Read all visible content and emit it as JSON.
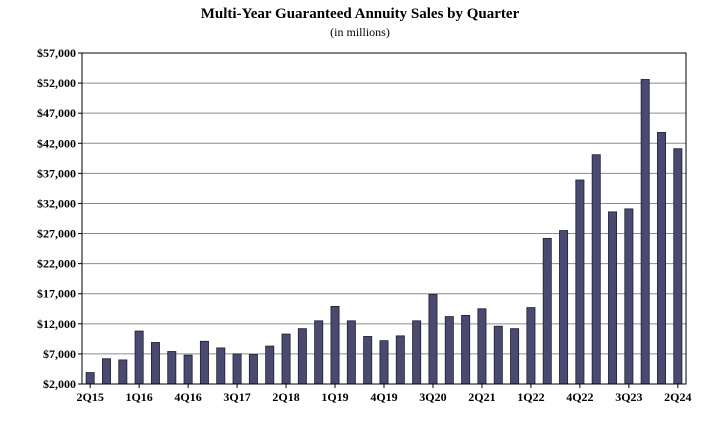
{
  "chart_data": {
    "type": "bar",
    "title": "Multi-Year Guaranteed Annuity Sales by Quarter",
    "subtitle": "(in millions)",
    "xlabel": "",
    "ylabel": "",
    "ylim": [
      2000,
      57000
    ],
    "yticks": [
      "$2,000",
      "$7,000",
      "$12,000",
      "$17,000",
      "$22,000",
      "$27,000",
      "$32,000",
      "$37,000",
      "$42,000",
      "$47,000",
      "$52,000",
      "$57,000"
    ],
    "grid": true,
    "bar_color": "#4a4a70",
    "categories": [
      "2Q15",
      "3Q15",
      "4Q15",
      "1Q16",
      "2Q16",
      "3Q16",
      "4Q16",
      "1Q17",
      "2Q17",
      "3Q17",
      "4Q17",
      "1Q18",
      "2Q18",
      "3Q18",
      "4Q18",
      "1Q19",
      "2Q19",
      "3Q19",
      "4Q19",
      "1Q20",
      "2Q20",
      "3Q20",
      "4Q20",
      "1Q21",
      "2Q21",
      "3Q21",
      "4Q21",
      "1Q22",
      "2Q22",
      "3Q22",
      "4Q22",
      "1Q23",
      "2Q23",
      "3Q23",
      "4Q23",
      "1Q24",
      "2Q24"
    ],
    "xtick_labels": [
      {
        "index": 0,
        "label": "2Q15"
      },
      {
        "index": 3,
        "label": "1Q16"
      },
      {
        "index": 6,
        "label": "4Q16"
      },
      {
        "index": 9,
        "label": "3Q17"
      },
      {
        "index": 12,
        "label": "2Q18"
      },
      {
        "index": 15,
        "label": "1Q19"
      },
      {
        "index": 18,
        "label": "4Q19"
      },
      {
        "index": 21,
        "label": "3Q20"
      },
      {
        "index": 24,
        "label": "2Q21"
      },
      {
        "index": 27,
        "label": "1Q22"
      },
      {
        "index": 30,
        "label": "4Q22"
      },
      {
        "index": 33,
        "label": "3Q23"
      },
      {
        "index": 36,
        "label": "2Q24"
      }
    ],
    "values": [
      3900,
      6200,
      6000,
      10800,
      8900,
      7400,
      6800,
      9100,
      8000,
      7000,
      6900,
      8300,
      10300,
      11200,
      12500,
      14900,
      12500,
      9900,
      9200,
      10000,
      12500,
      16900,
      13200,
      13400,
      14500,
      11600,
      11200,
      14700,
      26200,
      27500,
      35900,
      40100,
      30600,
      31100,
      52600,
      43800,
      41100
    ]
  }
}
